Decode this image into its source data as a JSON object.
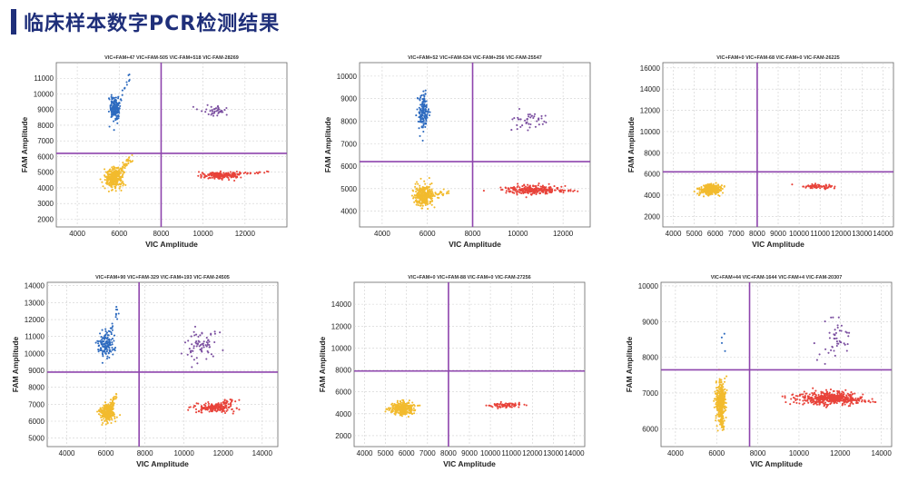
{
  "page": {
    "title": "临床样本数字PCR检测结果"
  },
  "colors": {
    "accent": "#1f2f7a",
    "threshold": "#8e44ad",
    "blue": "#2e6bbf",
    "purple": "#7b4fa0",
    "yellow": "#f2bb2e",
    "red": "#e8433a",
    "grid": "#cfcfcf"
  },
  "chart_data": [
    {
      "type": "scatter",
      "title": "VIC+FAM+47  VIC+FAM-505  VIC-FAM+518  VIC-FAM-28269",
      "xlabel": "VIC Amplitude",
      "ylabel": "FAM Amplitude",
      "xlim": [
        3000,
        14000
      ],
      "ylim": [
        1500,
        12000
      ],
      "xticks": [
        4000,
        6000,
        8000,
        10000,
        12000
      ],
      "yticks": [
        2000,
        3000,
        4000,
        5000,
        6000,
        7000,
        8000,
        9000,
        10000,
        11000
      ],
      "threshold": {
        "x": 8000,
        "y": 6200
      },
      "clusters": [
        {
          "name": "VIC-FAM+",
          "color": "blue",
          "cx": 5800,
          "cy": 9100,
          "sx": 120,
          "sy": 450,
          "n": 170,
          "tail": [
            6500,
            11200
          ]
        },
        {
          "name": "VIC+FAM+",
          "color": "purple",
          "cx": 10600,
          "cy": 8950,
          "sx": 350,
          "sy": 180,
          "n": 40
        },
        {
          "name": "VIC-FAM-",
          "color": "yellow",
          "cx": 5750,
          "cy": 4600,
          "sx": 200,
          "sy": 320,
          "n": 350,
          "tail": [
            6600,
            6000
          ]
        },
        {
          "name": "VIC+FAM-",
          "color": "red",
          "cx": 10900,
          "cy": 4800,
          "sx": 450,
          "sy": 110,
          "n": 220,
          "tail": [
            13000,
            5000
          ]
        }
      ]
    },
    {
      "type": "scatter",
      "title": "VIC+FAM+52  VIC+FAM-534  VIC-FAM+256  VIC-FAM-25547",
      "xlabel": "VIC Amplitude",
      "ylabel": "FAM Amplitude",
      "xlim": [
        3000,
        13200
      ],
      "ylim": [
        3300,
        10600
      ],
      "xticks": [
        4000,
        6000,
        8000,
        10000,
        12000
      ],
      "yticks": [
        4000,
        5000,
        6000,
        7000,
        8000,
        9000,
        10000
      ],
      "threshold": {
        "x": 8000,
        "y": 6200
      },
      "clusters": [
        {
          "name": "VIC-FAM+",
          "color": "blue",
          "cx": 5800,
          "cy": 8300,
          "sx": 110,
          "sy": 380,
          "n": 150,
          "tail": [
            5900,
            9300
          ]
        },
        {
          "name": "VIC+FAM+",
          "color": "purple",
          "cx": 10500,
          "cy": 8000,
          "sx": 400,
          "sy": 200,
          "n": 45
        },
        {
          "name": "VIC-FAM-",
          "color": "yellow",
          "cx": 5800,
          "cy": 4700,
          "sx": 200,
          "sy": 250,
          "n": 350,
          "tail": [
            7000,
            4800
          ]
        },
        {
          "name": "VIC+FAM-",
          "color": "red",
          "cx": 10600,
          "cy": 4950,
          "sx": 600,
          "sy": 110,
          "n": 250,
          "tail": [
            12500,
            4900
          ]
        }
      ]
    },
    {
      "type": "scatter",
      "title": "VIC+FAM+0  VIC+FAM-68  VIC-FAM+0  VIC-FAM-26225",
      "xlabel": "VIC Amplitude",
      "ylabel": "FAM Amplitude",
      "xlim": [
        3500,
        14500
      ],
      "ylim": [
        1000,
        16500
      ],
      "xticks": [
        4000,
        5000,
        6000,
        7000,
        8000,
        9000,
        10000,
        11000,
        12000,
        13000,
        14000
      ],
      "yticks": [
        2000,
        4000,
        6000,
        8000,
        10000,
        12000,
        14000,
        16000
      ],
      "threshold": {
        "x": 8000,
        "y": 6200
      },
      "clusters": [
        {
          "name": "VIC-FAM-",
          "color": "yellow",
          "cx": 5800,
          "cy": 4500,
          "sx": 250,
          "sy": 250,
          "n": 300
        },
        {
          "name": "VIC+FAM-",
          "color": "red",
          "cx": 10900,
          "cy": 4800,
          "sx": 350,
          "sy": 120,
          "n": 70
        }
      ]
    },
    {
      "type": "scatter",
      "title": "VIC+FAM+90  VIC+FAM-329  VIC-FAM+193  VIC-FAM-24505",
      "xlabel": "VIC Amplitude",
      "ylabel": "FAM Amplitude",
      "xlim": [
        3000,
        14800
      ],
      "ylim": [
        4500,
        14200
      ],
      "xticks": [
        4000,
        6000,
        8000,
        10000,
        12000,
        14000
      ],
      "yticks": [
        5000,
        6000,
        7000,
        8000,
        9000,
        10000,
        11000,
        12000,
        13000,
        14000
      ],
      "threshold": {
        "x": 7700,
        "y": 8900
      },
      "clusters": [
        {
          "name": "VIC-FAM+",
          "color": "blue",
          "cx": 6000,
          "cy": 10500,
          "sx": 200,
          "sy": 420,
          "n": 150,
          "tail": [
            6600,
            12600
          ]
        },
        {
          "name": "VIC+FAM+",
          "color": "purple",
          "cx": 10900,
          "cy": 10400,
          "sx": 450,
          "sy": 500,
          "n": 70,
          "tail": [
            11600,
            11500
          ]
        },
        {
          "name": "VIC-FAM-",
          "color": "yellow",
          "cx": 6100,
          "cy": 6500,
          "sx": 200,
          "sy": 250,
          "n": 300,
          "tail": [
            6500,
            7500
          ]
        },
        {
          "name": "VIC+FAM-",
          "color": "red",
          "cx": 11500,
          "cy": 6800,
          "sx": 500,
          "sy": 160,
          "n": 200,
          "tail": [
            12600,
            7300
          ]
        }
      ]
    },
    {
      "type": "scatter",
      "title": "VIC+FAM+0  VIC+FAM-88  VIC-FAM+0  VIC-FAM-27256",
      "xlabel": "VIC Amplitude",
      "ylabel": "FAM Amplitude",
      "xlim": [
        3500,
        14500
      ],
      "ylim": [
        1000,
        16000
      ],
      "xticks": [
        4000,
        5000,
        6000,
        7000,
        8000,
        9000,
        10000,
        11000,
        12000,
        13000,
        14000
      ],
      "yticks": [
        2000,
        4000,
        6000,
        8000,
        10000,
        12000,
        14000
      ],
      "threshold": {
        "x": 8000,
        "y": 7900
      },
      "clusters": [
        {
          "name": "VIC-FAM-",
          "color": "yellow",
          "cx": 5800,
          "cy": 4500,
          "sx": 280,
          "sy": 300,
          "n": 320
        },
        {
          "name": "VIC+FAM-",
          "color": "red",
          "cx": 10800,
          "cy": 4800,
          "sx": 400,
          "sy": 130,
          "n": 80
        }
      ]
    },
    {
      "type": "scatter",
      "title": "VIC+FAM+44  VIC+FAM-1644  VIC-FAM+4  VIC-FAM-20307",
      "xlabel": "VIC Amplitude",
      "ylabel": "FAM Amplitude",
      "xlim": [
        3300,
        14500
      ],
      "ylim": [
        5500,
        10100
      ],
      "xticks": [
        4000,
        6000,
        8000,
        10000,
        12000,
        14000
      ],
      "yticks": [
        6000,
        7000,
        8000,
        9000,
        10000
      ],
      "threshold": {
        "x": 7600,
        "y": 7650
      },
      "clusters": [
        {
          "name": "VIC-FAM+",
          "color": "blue",
          "cx": 6300,
          "cy": 8500,
          "sx": 60,
          "sy": 300,
          "n": 4
        },
        {
          "name": "VIC+FAM+",
          "color": "purple",
          "cx": 11700,
          "cy": 8500,
          "sx": 400,
          "sy": 300,
          "n": 45,
          "tail": [
            12600,
            9200
          ]
        },
        {
          "name": "VIC-FAM-",
          "color": "yellow",
          "cx": 6200,
          "cy": 6750,
          "sx": 120,
          "sy": 300,
          "n": 400,
          "tail": [
            6300,
            6000
          ]
        },
        {
          "name": "VIC+FAM-",
          "color": "red",
          "cx": 11500,
          "cy": 6850,
          "sx": 700,
          "sy": 90,
          "n": 500,
          "tail": [
            13500,
            6750
          ]
        }
      ]
    }
  ]
}
